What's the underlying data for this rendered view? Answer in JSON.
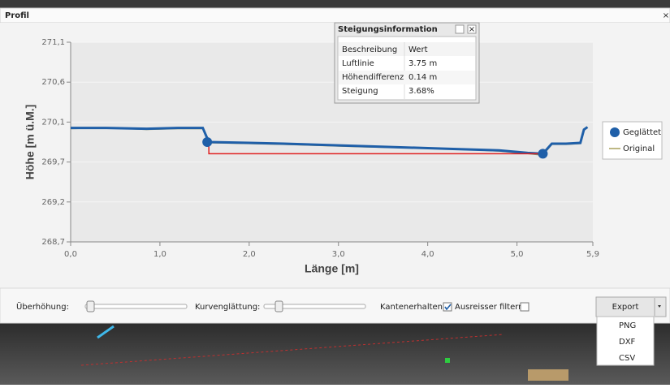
{
  "window": {
    "title": "Profil",
    "close": "×"
  },
  "chart_data": {
    "type": "line",
    "x_label": "Länge [m]",
    "y_label": "Höhe [m ü.M.]",
    "xlim": [
      0,
      5.85
    ],
    "ylim": [
      268.7,
      271.1
    ],
    "xticks": [
      {
        "value": 0,
        "label": "0,0"
      },
      {
        "value": 1,
        "label": "1,0"
      },
      {
        "value": 2,
        "label": "2,0"
      },
      {
        "value": 3,
        "label": "3,0"
      },
      {
        "value": 4,
        "label": "4,0"
      },
      {
        "value": 5,
        "label": "5,0"
      },
      {
        "value": 5.85,
        "label": "5,9"
      }
    ],
    "yticks": [
      {
        "value": 268.7,
        "label": "268,7"
      },
      {
        "value": 269.18,
        "label": "269,2"
      },
      {
        "value": 269.66,
        "label": "269,7"
      },
      {
        "value": 270.14,
        "label": "270,1"
      },
      {
        "value": 270.62,
        "label": "270,6"
      },
      {
        "value": 271.1,
        "label": "271,1"
      }
    ],
    "grid": true,
    "x": [
      0,
      0.4,
      0.85,
      1.2,
      1.48,
      1.52,
      1.55,
      2.0,
      2.39,
      3.3,
      4.21,
      4.8,
      5.12,
      5.29,
      5.39,
      5.55,
      5.71,
      5.75,
      5.79
    ],
    "series": [
      {
        "name": "Geglättet",
        "color": "#1f5fa8",
        "marker": "circle",
        "values": [
          270.07,
          270.07,
          270.06,
          270.07,
          270.07,
          269.97,
          269.9,
          269.89,
          269.88,
          269.85,
          269.82,
          269.8,
          269.77,
          269.76,
          269.88,
          269.88,
          269.89,
          270.05,
          270.08
        ]
      },
      {
        "name": "Original",
        "color": "#a9a05a",
        "marker": "line",
        "values": [
          270.06,
          270.07,
          270.05,
          270.06,
          270.06,
          269.95,
          269.89,
          269.88,
          269.87,
          269.84,
          269.82,
          269.79,
          269.76,
          269.74,
          269.87,
          269.87,
          269.88,
          270.04,
          270.08
        ]
      }
    ],
    "points": {
      "x": [
        1.53,
        5.29
      ],
      "y": [
        269.9,
        269.76
      ],
      "color": "#1f5fa8"
    },
    "slope_color": "#e02020",
    "legend": "right"
  },
  "popup": {
    "title": "Steigungsinformation",
    "close": "×",
    "columns": [
      "Beschreibung",
      "Wert"
    ],
    "rows": [
      [
        "Luftlinie",
        "3.75 m"
      ],
      [
        "Höhendifferenz",
        "0.14 m"
      ],
      [
        "Steigung",
        "3.68%"
      ]
    ]
  },
  "toolbar": {
    "exaggeration": "Überhöhung:",
    "smoothing": "Kurvenglättung:",
    "edge_preserving": "Kantenerhaltend:",
    "outlier_filter": "Ausreisser filtern:",
    "export": "Export"
  },
  "export_menu": [
    "PNG",
    "DXF",
    "CSV"
  ]
}
